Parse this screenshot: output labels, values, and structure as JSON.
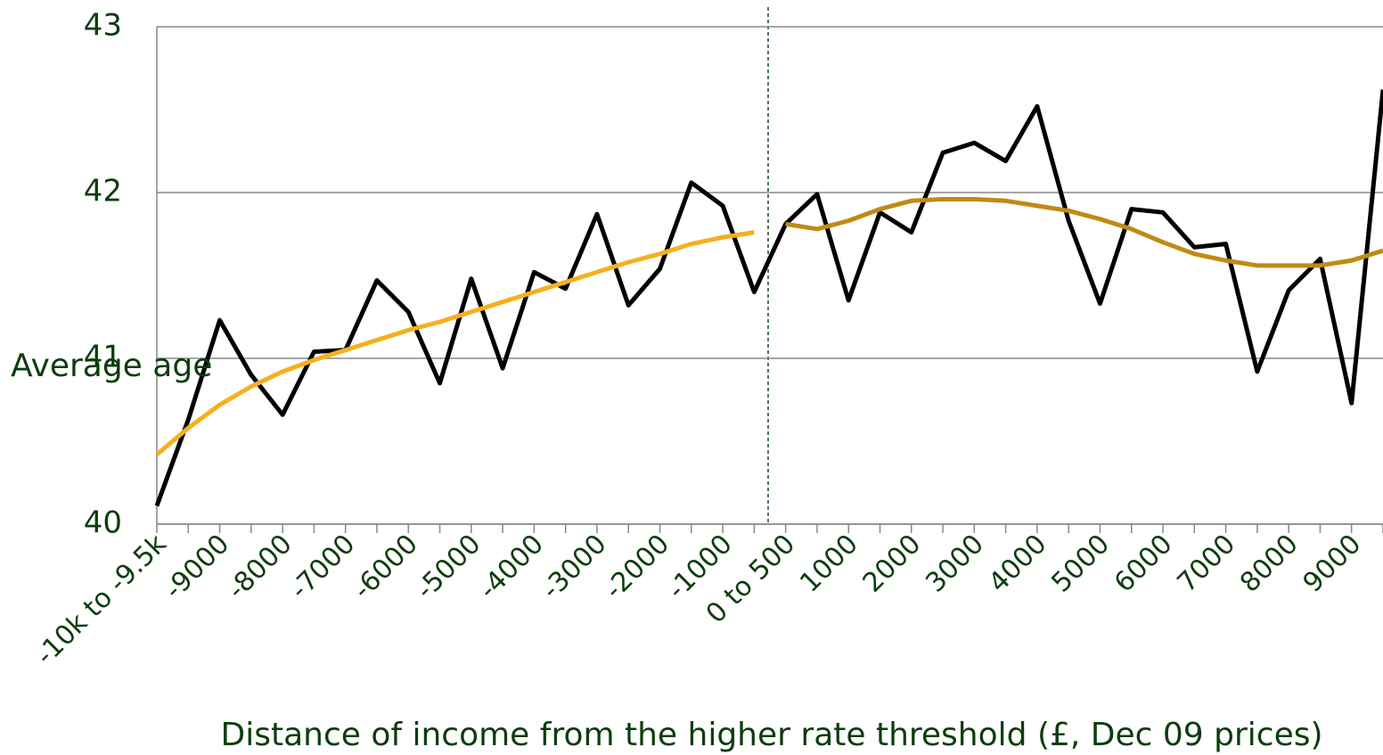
{
  "chart_data": {
    "type": "line",
    "x_label": "Distance of income from the higher rate threshold (£, Dec 09 prices)",
    "y_label": "Average age",
    "categories": [
      "-10k to -9.5k",
      null,
      "-9000",
      null,
      "-8000",
      null,
      "-7000",
      null,
      "-6000",
      null,
      "-5000",
      null,
      "-4000",
      null,
      "-3000",
      null,
      "-2000",
      null,
      "-1000",
      null,
      "0 to 500",
      null,
      "1000",
      null,
      "2000",
      null,
      "3000",
      null,
      "4000",
      null,
      "5000",
      null,
      "6000",
      null,
      "7000",
      null,
      "8000",
      null,
      "9000",
      null
    ],
    "series": [
      {
        "color": "#000000",
        "values": [
          40.11,
          40.63,
          41.23,
          40.9,
          40.66,
          41.04,
          41.05,
          41.47,
          41.28,
          40.85,
          41.48,
          40.94,
          41.52,
          41.42,
          41.87,
          41.32,
          41.54,
          42.06,
          41.92,
          41.4,
          41.81,
          41.99,
          41.35,
          41.88,
          41.76,
          42.24,
          42.3,
          42.19,
          42.52,
          41.83,
          41.33,
          41.9,
          41.88,
          41.67,
          41.69,
          40.92,
          41.41,
          41.6,
          40.73,
          42.62
        ]
      },
      {
        "color": "#f5b01e",
        "values": [
          40.42,
          40.58,
          40.72,
          40.83,
          40.92,
          40.99,
          41.05,
          41.11,
          41.17,
          41.22,
          41.28,
          41.34,
          41.4,
          41.46,
          41.52,
          41.58,
          41.63,
          41.69,
          41.73,
          41.76,
          null,
          null,
          null,
          null,
          null,
          null,
          null,
          null,
          null,
          null,
          null,
          null,
          null,
          null,
          null,
          null,
          null,
          null,
          null,
          null
        ]
      },
      {
        "color": "#c08a14",
        "values": [
          null,
          null,
          null,
          null,
          null,
          null,
          null,
          null,
          null,
          null,
          null,
          null,
          null,
          null,
          null,
          null,
          null,
          null,
          null,
          null,
          41.81,
          41.78,
          41.83,
          41.9,
          41.95,
          41.96,
          41.96,
          41.95,
          41.92,
          41.89,
          41.84,
          41.78,
          41.7,
          41.63,
          41.59,
          41.56,
          41.56,
          41.56,
          41.59,
          41.65
        ]
      }
    ],
    "ylim": [
      40,
      43
    ],
    "yticks": [
      40,
      41,
      42,
      43
    ],
    "grid": true
  }
}
